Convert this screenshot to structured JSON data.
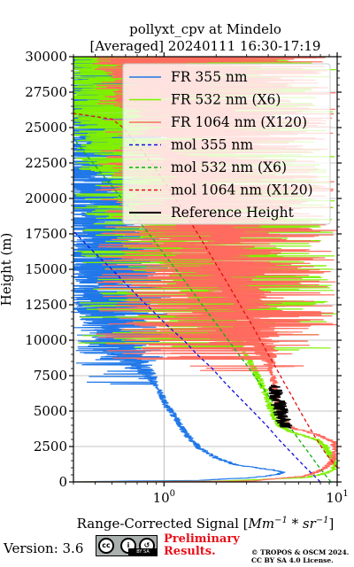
{
  "chart_data": {
    "type": "line",
    "title": "pollyxt_cpv at Mindelo",
    "subtitle": "[Averaged] 20240111 16:30-17:19",
    "xlabel": "Range-Corrected Signal [Mm⁻¹ * sr⁻¹]",
    "xlabel_parts": {
      "main": "Range-Corrected Signal [",
      "math": "Mm",
      "sup1": "−1",
      "mid": " * ",
      "math2": "sr",
      "sup2": "−1",
      "end": "]"
    },
    "ylabel": "Height (m)",
    "xscale": "log",
    "xlim": [
      0.3,
      10
    ],
    "ylim": [
      0,
      30000
    ],
    "grid": true,
    "legend_position": "top-right",
    "x_tick_labels": [
      {
        "base": "10",
        "exp": "0",
        "value": 1
      },
      {
        "base": "10",
        "exp": "1",
        "value": 10
      }
    ],
    "y_ticks": [
      0,
      2500,
      5000,
      7500,
      10000,
      12500,
      15000,
      17500,
      20000,
      22500,
      25000,
      27500,
      30000
    ],
    "y_tick_labels": [
      "0",
      "2500",
      "5000",
      "7500",
      "10000",
      "12500",
      "15000",
      "17500",
      "20000",
      "22500",
      "25000",
      "27500",
      "30000"
    ],
    "series": [
      {
        "name": "FR 355 nm",
        "color": "#1f77e8",
        "style": "solid",
        "kind": "noisy",
        "points": [
          [
            0.3,
            0
          ],
          [
            0.5,
            50
          ],
          [
            1.5,
            100
          ],
          [
            3.2,
            300
          ],
          [
            4.4,
            500
          ],
          [
            4.9,
            700
          ],
          [
            4.0,
            900
          ],
          [
            2.6,
            1200
          ],
          [
            2.0,
            1700
          ],
          [
            1.6,
            2400
          ],
          [
            1.35,
            3300
          ],
          [
            1.2,
            4300
          ],
          [
            1.05,
            5300
          ],
          [
            0.95,
            6300
          ],
          [
            0.85,
            7300
          ],
          [
            0.72,
            8300
          ],
          [
            0.6,
            9300
          ],
          [
            0.5,
            10300
          ],
          [
            0.4,
            12000
          ],
          [
            0.36,
            14000
          ],
          [
            0.33,
            16000
          ],
          [
            0.31,
            18000
          ],
          [
            0.3,
            30000
          ]
        ],
        "noise_start": 6500,
        "noise_range": [
          0.3,
          1.1
        ]
      },
      {
        "name": "FR 532 nm (X6)",
        "color": "#80f000",
        "style": "solid",
        "kind": "noisy",
        "points": [
          [
            0.3,
            0
          ],
          [
            2.0,
            50
          ],
          [
            6.5,
            300
          ],
          [
            8.5,
            600
          ],
          [
            9.5,
            900
          ],
          [
            9.8,
            1200
          ],
          [
            9.5,
            1600
          ],
          [
            9.0,
            2000
          ],
          [
            8.4,
            2600
          ],
          [
            7.6,
            3000
          ],
          [
            5.5,
            3500
          ],
          [
            4.6,
            4000
          ],
          [
            4.2,
            5000
          ],
          [
            3.8,
            6500
          ],
          [
            3.3,
            8000
          ],
          [
            2.8,
            9500
          ],
          [
            2.3,
            11000
          ],
          [
            1.8,
            13000
          ],
          [
            1.3,
            15000
          ],
          [
            1.0,
            17000
          ],
          [
            0.8,
            19000
          ],
          [
            0.6,
            21000
          ],
          [
            0.45,
            23000
          ],
          [
            0.35,
            25000
          ],
          [
            0.3,
            30000
          ]
        ],
        "noise_start": 9000,
        "noise_range": [
          0.3,
          10
        ]
      },
      {
        "name": "FR 1064 nm (X120)",
        "color": "#ff6b5e",
        "style": "solid",
        "kind": "noisy",
        "points": [
          [
            0.3,
            0
          ],
          [
            3.0,
            50
          ],
          [
            6.5,
            400
          ],
          [
            8.0,
            800
          ],
          [
            9.0,
            1200
          ],
          [
            9.5,
            1700
          ],
          [
            9.8,
            2200
          ],
          [
            9.6,
            2800
          ],
          [
            7.5,
            3400
          ],
          [
            5.5,
            3800
          ],
          [
            4.8,
            4500
          ],
          [
            4.5,
            5500
          ],
          [
            4.4,
            6500
          ],
          [
            4.2,
            7500
          ],
          [
            4.0,
            8500
          ],
          [
            3.8,
            9500
          ],
          [
            3.5,
            10500
          ],
          [
            3.2,
            11500
          ],
          [
            3.0,
            12500
          ],
          [
            2.8,
            13500
          ],
          [
            2.6,
            14500
          ],
          [
            2.4,
            15500
          ],
          [
            2.2,
            16500
          ],
          [
            2.0,
            17500
          ],
          [
            1.8,
            18500
          ],
          [
            1.5,
            20000
          ],
          [
            1.2,
            22000
          ],
          [
            1.0,
            24000
          ],
          [
            0.8,
            26000
          ],
          [
            0.6,
            28000
          ],
          [
            0.5,
            30000
          ]
        ],
        "noise_start": 7500,
        "noise_range": [
          0.4,
          10
        ]
      },
      {
        "name": "mol 355 nm",
        "color": "#1010e0",
        "style": "dashed",
        "kind": "smooth",
        "points": [
          [
            8.0,
            0
          ],
          [
            6.6,
            1000
          ],
          [
            5.5,
            2000
          ],
          [
            4.6,
            3000
          ],
          [
            3.9,
            4000
          ],
          [
            3.25,
            5000
          ],
          [
            2.7,
            6000
          ],
          [
            2.25,
            7000
          ],
          [
            1.9,
            8000
          ],
          [
            1.55,
            9000
          ],
          [
            1.3,
            10000
          ],
          [
            1.05,
            11000
          ],
          [
            0.87,
            12000
          ],
          [
            0.72,
            13000
          ],
          [
            0.6,
            14000
          ],
          [
            0.5,
            15000
          ],
          [
            0.41,
            16000
          ],
          [
            0.34,
            17000
          ],
          [
            0.3,
            17700
          ]
        ]
      },
      {
        "name": "mol 532 nm (X6)",
        "color": "#10b010",
        "style": "dashed",
        "kind": "smooth",
        "points": [
          [
            9.2,
            0
          ],
          [
            7.9,
            1000
          ],
          [
            6.9,
            2000
          ],
          [
            6.0,
            3000
          ],
          [
            5.25,
            4000
          ],
          [
            4.6,
            5000
          ],
          [
            4.05,
            6000
          ],
          [
            3.55,
            7000
          ],
          [
            3.1,
            8000
          ],
          [
            2.7,
            9000
          ],
          [
            2.35,
            10000
          ],
          [
            2.05,
            11000
          ],
          [
            1.78,
            12000
          ],
          [
            1.55,
            13000
          ],
          [
            1.35,
            14000
          ],
          [
            1.17,
            15000
          ],
          [
            1.01,
            16000
          ],
          [
            0.88,
            17000
          ],
          [
            0.76,
            18000
          ],
          [
            0.66,
            19000
          ],
          [
            0.57,
            20000
          ],
          [
            0.49,
            21000
          ],
          [
            0.42,
            22000
          ],
          [
            0.36,
            23000
          ],
          [
            0.31,
            24000
          ],
          [
            0.3,
            24300
          ]
        ]
      },
      {
        "name": "mol 1064 nm (X120)",
        "color": "#e01010",
        "style": "dashed",
        "kind": "smooth",
        "points": [
          [
            10.0,
            1000
          ],
          [
            8.6,
            2000
          ],
          [
            7.6,
            3000
          ],
          [
            6.8,
            4000
          ],
          [
            6.1,
            5000
          ],
          [
            5.5,
            6000
          ],
          [
            4.95,
            7000
          ],
          [
            4.45,
            8000
          ],
          [
            4.0,
            9000
          ],
          [
            3.6,
            10000
          ],
          [
            3.25,
            11000
          ],
          [
            2.9,
            12000
          ],
          [
            2.6,
            13000
          ],
          [
            2.33,
            14000
          ],
          [
            2.08,
            15000
          ],
          [
            1.86,
            16000
          ],
          [
            1.66,
            17000
          ],
          [
            1.48,
            18000
          ],
          [
            1.31,
            19000
          ],
          [
            1.16,
            20000
          ],
          [
            1.03,
            21000
          ],
          [
            0.9,
            22000
          ],
          [
            0.79,
            23000
          ],
          [
            0.68,
            24000
          ],
          [
            0.58,
            25000
          ],
          [
            0.5,
            25600
          ],
          [
            0.3,
            26000
          ]
        ]
      },
      {
        "name": "Reference Height",
        "color": "#000000",
        "style": "solid",
        "kind": "band",
        "y_range": [
          3800,
          6800
        ],
        "x_center": [
          4.3,
          5.0
        ]
      }
    ]
  },
  "footer": {
    "version": "Version: 3.6",
    "preliminary_line1": "Preliminary",
    "preliminary_line2": "Results.",
    "copyright_line1": "© TROPOS & OSCM 2024.",
    "copyright_line2": "CC BY SA 4.0 License.",
    "license_badge": {
      "c": "cc",
      "by": "i",
      "sa": "↺",
      "label": "BY  SA"
    }
  }
}
